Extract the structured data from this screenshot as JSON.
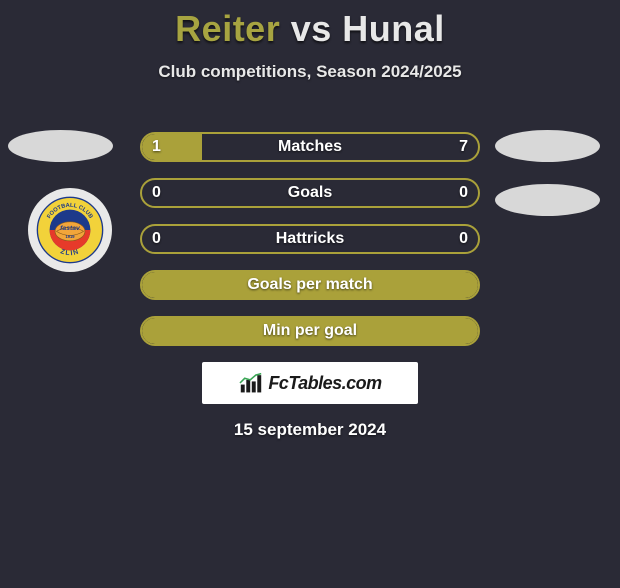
{
  "title": {
    "player1": "Reiter",
    "vs": "vs",
    "player2": "Hunal",
    "player1_color": "#a7a441",
    "player2_color": "#e8e8e8"
  },
  "subtitle": "Club competitions, Season 2024/2025",
  "colors": {
    "background": "#2a2a36",
    "accent": "#aaa13a",
    "accent_dark": "#7e7a2c",
    "ellipse": "#d8d8d8",
    "text": "#ffffff"
  },
  "bars": [
    {
      "label": "Matches",
      "left": "1",
      "right": "7",
      "fill_percent": 18,
      "show_values": true,
      "border_color": "#aaa13a",
      "fill_color": "#aaa13a"
    },
    {
      "label": "Goals",
      "left": "0",
      "right": "0",
      "fill_percent": 0,
      "show_values": true,
      "border_color": "#aaa13a",
      "fill_color": "#aaa13a"
    },
    {
      "label": "Hattricks",
      "left": "0",
      "right": "0",
      "fill_percent": 0,
      "show_values": true,
      "border_color": "#aaa13a",
      "fill_color": "#aaa13a"
    },
    {
      "label": "Goals per match",
      "left": "",
      "right": "",
      "fill_percent": 100,
      "show_values": false,
      "border_color": "#aaa13a",
      "fill_color": "#aaa13a"
    },
    {
      "label": "Min per goal",
      "left": "",
      "right": "",
      "fill_percent": 100,
      "show_values": false,
      "border_color": "#aaa13a",
      "fill_color": "#aaa13a"
    }
  ],
  "badge": {
    "outer_text_top": "FOOTBALL CLUB",
    "outer_text_bottom": "ZLÍN",
    "inner_text": "fastav",
    "year": "1919",
    "ring_color": "#f2d23a",
    "ring_text_color": "#1d3a8a",
    "inner_top_color": "#1d3a8a",
    "inner_bottom_color": "#e63a2a"
  },
  "logo": {
    "text": "FcTables.com"
  },
  "date": "15 september 2024"
}
